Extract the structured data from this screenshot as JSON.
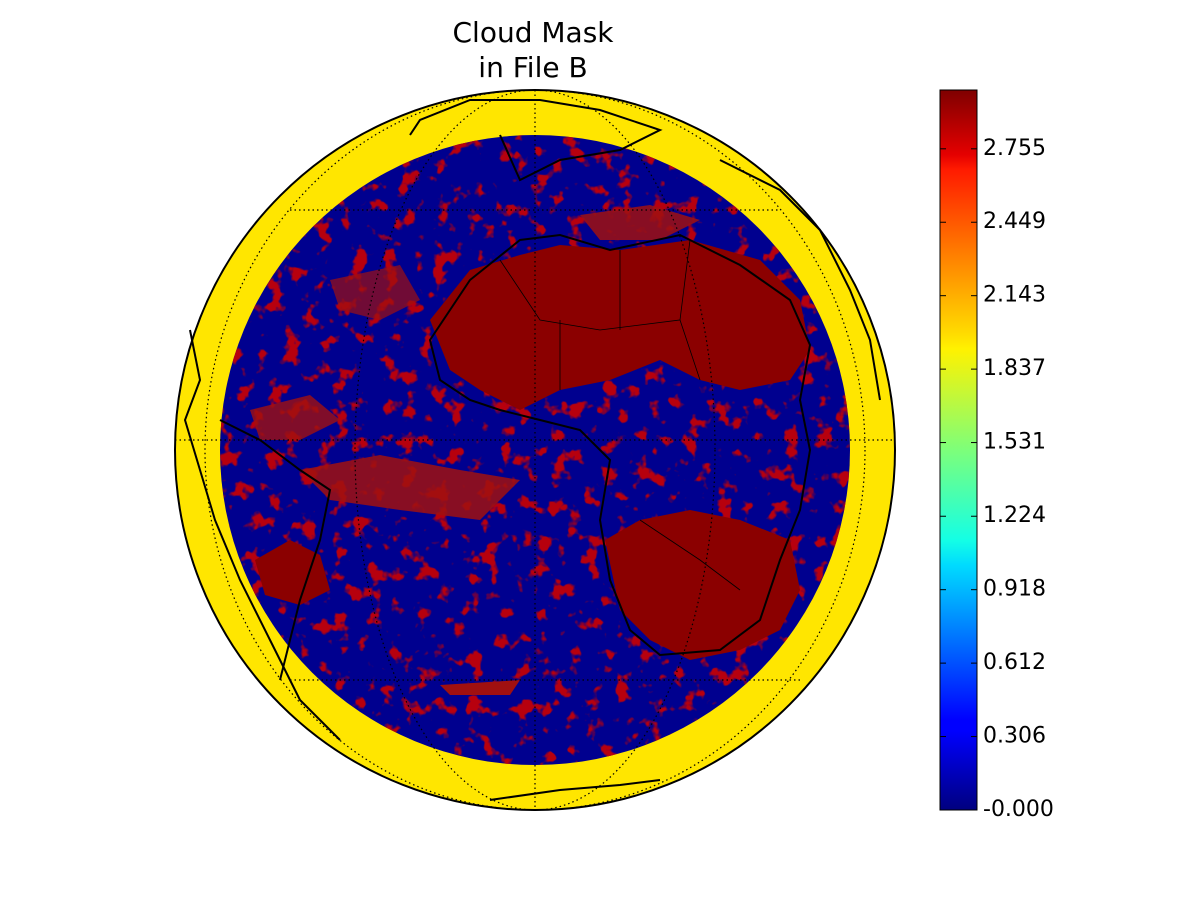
{
  "map": {
    "title": [
      "Cloud Mask",
      "in File B"
    ],
    "colorbar": {
      "lim": [
        0,
        3
      ],
      "ticks": [
        {
          "value": 0,
          "label": "-0.000"
        },
        0.306,
        0.612,
        0.918,
        1.224,
        1.531,
        1.837,
        2.143,
        2.449,
        2.755
      ]
    }
  }
}
